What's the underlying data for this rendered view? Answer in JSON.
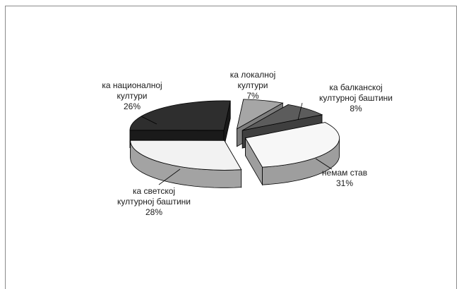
{
  "chart_data": {
    "type": "pie",
    "style": "3d-exploded",
    "title": "",
    "slices": [
      {
        "label_lines": [
          "ка локалној",
          "култури"
        ],
        "value": 7,
        "value_text": "7%",
        "color": "#a6a6a6",
        "side": "#7d7d7d"
      },
      {
        "label_lines": [
          "ка балканској",
          "културној баштини"
        ],
        "value": 8,
        "value_text": "8%",
        "color": "#5c5c5c",
        "side": "#3f3f3f"
      },
      {
        "label_lines": [
          "немам став"
        ],
        "value": 31,
        "value_text": "31%",
        "color": "#f7f7f7",
        "side": "#9e9e9e"
      },
      {
        "label_lines": [
          "ка светској",
          "културној баштини"
        ],
        "value": 28,
        "value_text": "28%",
        "color": "#f2f2f2",
        "side": "#a3a3a3"
      },
      {
        "label_lines": [
          "ка националној",
          "култури"
        ],
        "value": 26,
        "value_text": "26%",
        "color": "#2e2e2e",
        "side": "#1a1a1a"
      }
    ],
    "legend": "none"
  }
}
